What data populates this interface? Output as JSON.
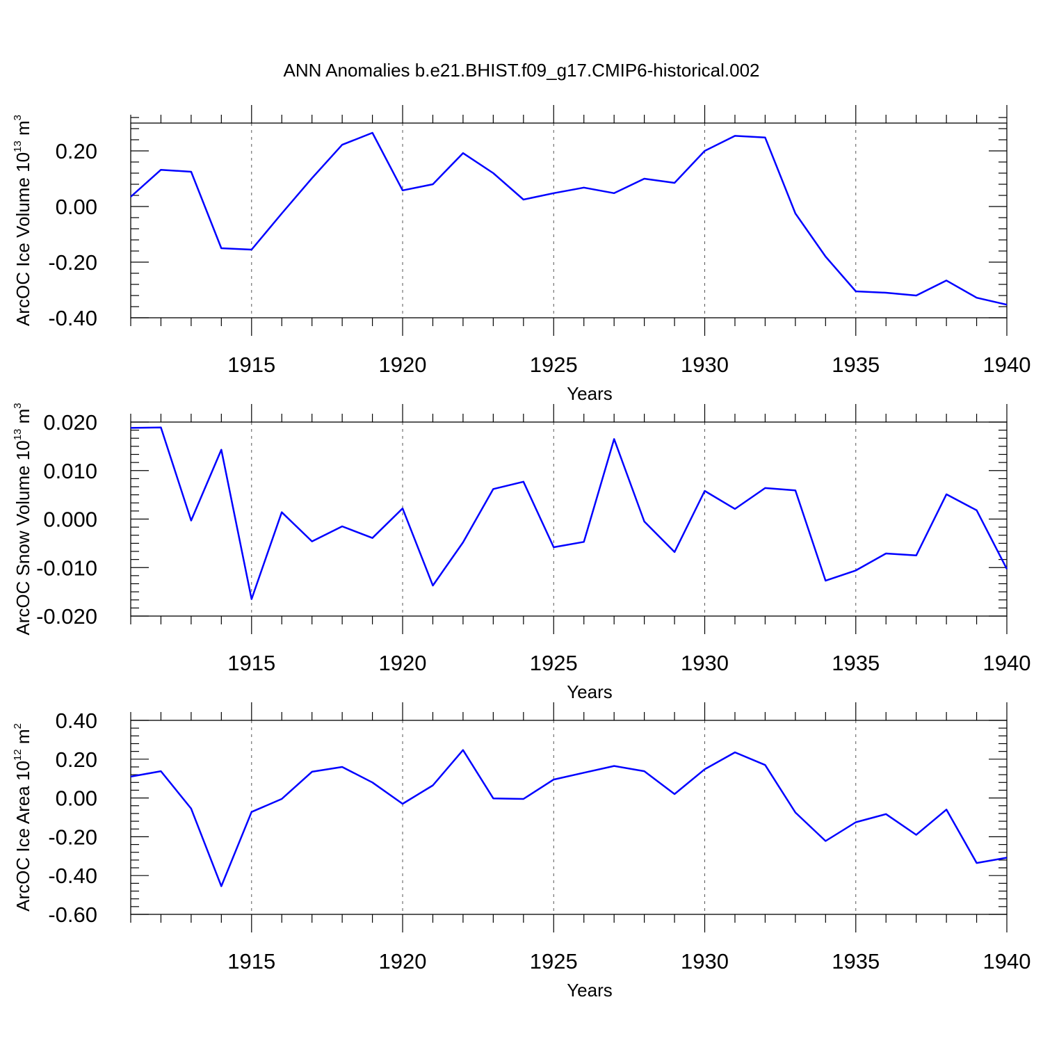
{
  "title": "ANN Anomalies b.e21.BHIST.f09_g17.CMIP6-historical.002",
  "colors": {
    "line": "#0000ff",
    "axis": "#000000",
    "grid": "#555555"
  },
  "chart_data": [
    {
      "type": "line",
      "name": "ice-volume",
      "ylabel": {
        "main": "ArcOC Ice Volume 10",
        "sup": "13",
        "rest": " m",
        "sup2": "3"
      },
      "xlabel": "Years",
      "xlim": [
        1911,
        1940
      ],
      "ylim": [
        -0.4,
        0.3
      ],
      "yticks": [
        -0.4,
        -0.2,
        0.0,
        0.2
      ],
      "ytick_labels": [
        "-0.40",
        "-0.20",
        "0.00",
        "0.20"
      ],
      "xticks": [
        1915,
        1920,
        1925,
        1930,
        1935,
        1940
      ],
      "xtick_labels": [
        "1915",
        "1920",
        "1925",
        "1930",
        "1935",
        "1940"
      ],
      "x": [
        1911,
        1912,
        1913,
        1914,
        1915,
        1916,
        1917,
        1918,
        1919,
        1920,
        1921,
        1922,
        1923,
        1924,
        1925,
        1926,
        1927,
        1928,
        1929,
        1930,
        1931,
        1932,
        1933,
        1934,
        1935,
        1936,
        1937,
        1938,
        1939,
        1940
      ],
      "values": [
        0.035,
        0.132,
        0.125,
        -0.15,
        -0.155,
        -0.025,
        0.102,
        0.222,
        0.265,
        0.058,
        0.08,
        0.192,
        0.12,
        0.025,
        0.048,
        0.068,
        0.048,
        0.1,
        0.085,
        0.2,
        0.254,
        0.248,
        -0.025,
        -0.18,
        -0.305,
        -0.31,
        -0.32,
        -0.266,
        -0.328,
        -0.353
      ]
    },
    {
      "type": "line",
      "name": "snow-volume",
      "ylabel": {
        "main": "ArcOC Snow Volume 10",
        "sup": "13",
        "rest": " m",
        "sup2": "3"
      },
      "xlabel": "Years",
      "xlim": [
        1911,
        1940
      ],
      "ylim": [
        -0.02,
        0.02
      ],
      "yticks": [
        -0.02,
        -0.01,
        0.0,
        0.01,
        0.02
      ],
      "ytick_labels": [
        "-0.020",
        "-0.010",
        "0.000",
        "0.010",
        "0.020"
      ],
      "xticks": [
        1915,
        1920,
        1925,
        1930,
        1935,
        1940
      ],
      "xtick_labels": [
        "1915",
        "1920",
        "1925",
        "1930",
        "1935",
        "1940"
      ],
      "x": [
        1911,
        1912,
        1913,
        1914,
        1915,
        1916,
        1917,
        1918,
        1919,
        1920,
        1921,
        1922,
        1923,
        1924,
        1925,
        1926,
        1927,
        1928,
        1929,
        1930,
        1931,
        1932,
        1933,
        1934,
        1935,
        1936,
        1937,
        1938,
        1939,
        1940
      ],
      "values": [
        0.0188,
        0.0189,
        -0.0003,
        0.0143,
        -0.0165,
        0.0014,
        -0.0046,
        -0.0015,
        -0.0039,
        0.0022,
        -0.0137,
        -0.0048,
        0.0062,
        0.0077,
        -0.0058,
        -0.0047,
        0.0165,
        -0.0005,
        -0.0068,
        0.0058,
        0.0021,
        0.0064,
        0.0059,
        -0.0127,
        -0.0106,
        -0.0071,
        -0.0075,
        0.0051,
        0.0018,
        -0.0103
      ]
    },
    {
      "type": "line",
      "name": "ice-area",
      "ylabel": {
        "main": "ArcOC Ice Area 10",
        "sup": "12",
        "rest": " m",
        "sup2": "2"
      },
      "xlabel": "Years",
      "xlim": [
        1911,
        1940
      ],
      "ylim": [
        -0.6,
        0.4
      ],
      "yticks": [
        -0.6,
        -0.4,
        -0.2,
        0.0,
        0.2,
        0.4
      ],
      "ytick_labels": [
        "-0.60",
        "-0.40",
        "-0.20",
        "0.00",
        "0.20",
        "0.40"
      ],
      "xticks": [
        1915,
        1920,
        1925,
        1930,
        1935,
        1940
      ],
      "xtick_labels": [
        "1915",
        "1920",
        "1925",
        "1930",
        "1935",
        "1940"
      ],
      "x": [
        1911,
        1912,
        1913,
        1914,
        1915,
        1916,
        1917,
        1918,
        1919,
        1920,
        1921,
        1922,
        1923,
        1924,
        1925,
        1926,
        1927,
        1928,
        1929,
        1930,
        1931,
        1932,
        1933,
        1934,
        1935,
        1936,
        1937,
        1938,
        1939,
        1940
      ],
      "values": [
        0.11,
        0.138,
        -0.055,
        -0.455,
        -0.072,
        -0.005,
        0.135,
        0.16,
        0.08,
        -0.03,
        0.065,
        0.247,
        -0.002,
        -0.005,
        0.095,
        0.13,
        0.165,
        0.138,
        0.02,
        0.148,
        0.235,
        0.17,
        -0.075,
        -0.222,
        -0.125,
        -0.083,
        -0.19,
        -0.06,
        -0.335,
        -0.308
      ]
    }
  ]
}
